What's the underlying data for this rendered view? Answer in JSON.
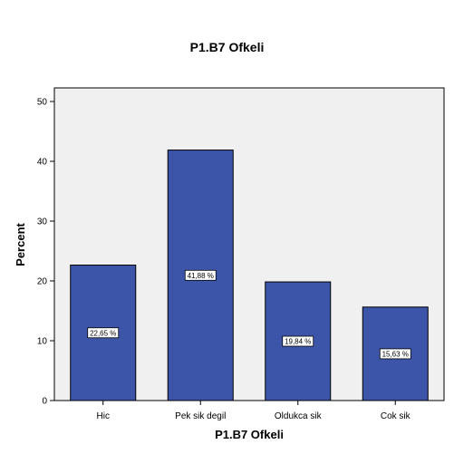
{
  "chart_data": {
    "type": "bar",
    "title": "P1.B7 Ofkeli",
    "xlabel": "P1.B7 Ofkeli",
    "ylabel": "Percent",
    "categories": [
      "Hic",
      "Pek sik degil",
      "Oldukca sik",
      "Cok sik"
    ],
    "values": [
      22.65,
      41.88,
      19.84,
      15.63
    ],
    "data_labels": [
      "22,65 %",
      "41,88 %",
      "19,84 %",
      "15,63 %"
    ],
    "ylim": [
      0,
      50
    ],
    "yticks": [
      0,
      10,
      20,
      30,
      40,
      50
    ],
    "grid": false,
    "legend": "none",
    "bar_color": "#3d55a9",
    "plot_background": "#f0f0f0"
  }
}
